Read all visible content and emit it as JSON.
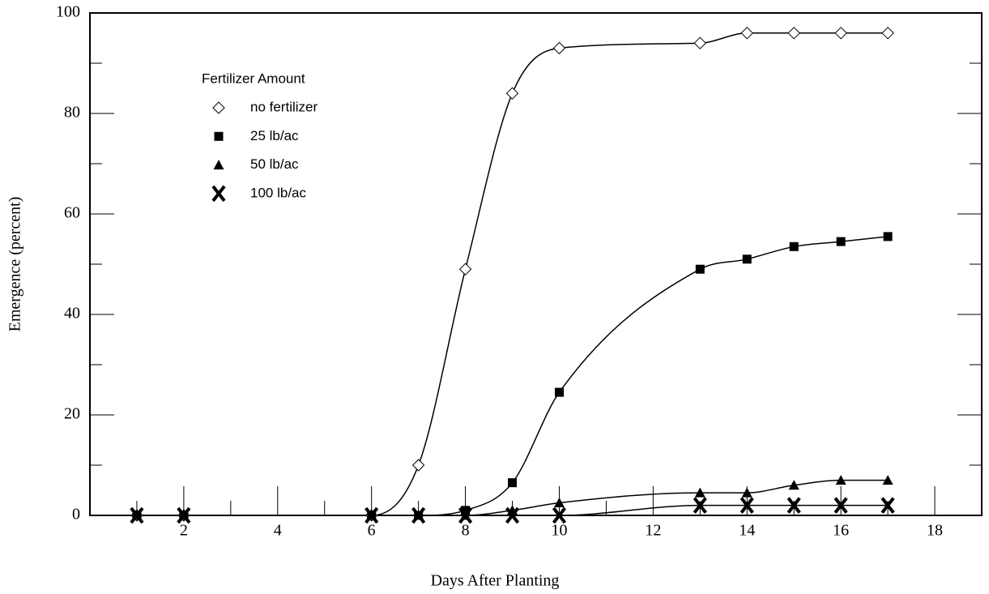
{
  "chart_data": {
    "type": "line",
    "x_label": "Days After Planting",
    "y_label": "Emergence (percent)",
    "xlim": [
      0,
      19
    ],
    "ylim": [
      0,
      100
    ],
    "xticks": [
      2,
      4,
      6,
      8,
      10,
      12,
      14,
      16,
      18
    ],
    "minor_xticks": [
      1,
      3,
      5,
      7,
      9,
      11,
      13,
      15,
      17
    ],
    "yticks": [
      0,
      20,
      40,
      60,
      80,
      100
    ],
    "minor_yticks": [
      10,
      30,
      50,
      70,
      90
    ],
    "legend_title": "Fertilizer Amount",
    "legend": "upper left",
    "x": [
      1,
      2,
      6,
      7,
      8,
      9,
      10,
      13,
      14,
      15,
      16,
      17
    ],
    "series": [
      {
        "name": "no fertilizer",
        "color": "#000000",
        "marker": "diamond",
        "values": [
          0,
          0,
          0,
          10,
          49,
          84,
          93,
          94,
          96,
          96,
          96,
          96
        ]
      },
      {
        "name": "25 lb/ac",
        "color": "#000000",
        "marker": "square",
        "values": [
          0,
          0,
          0,
          0,
          1,
          6.5,
          24.5,
          49,
          51,
          53.5,
          54.5,
          55.5
        ]
      },
      {
        "name": "50 lb/ac",
        "color": "#000000",
        "marker": "triangle",
        "values": [
          0,
          0,
          0,
          0,
          0,
          1,
          2.5,
          4.5,
          4.5,
          6,
          7,
          7
        ]
      },
      {
        "name": "100 lb/ac",
        "color": "#000000",
        "marker": "x",
        "values": [
          0,
          0,
          0,
          0,
          0,
          0,
          0,
          2,
          2,
          2,
          2,
          2
        ]
      }
    ]
  }
}
